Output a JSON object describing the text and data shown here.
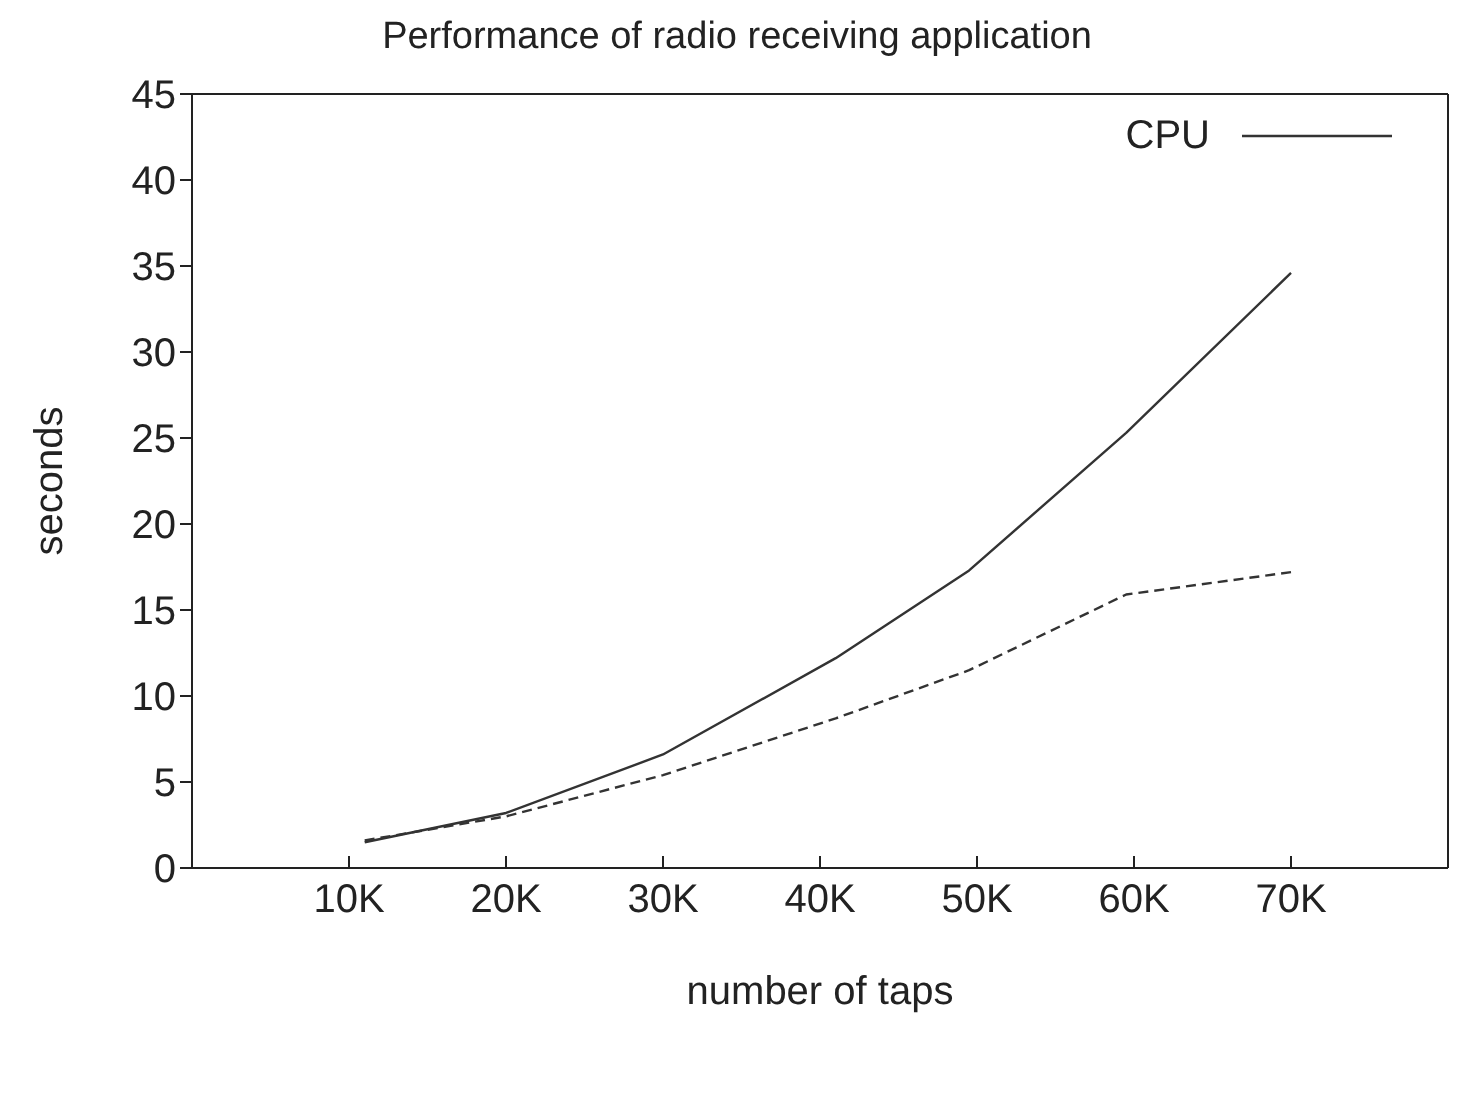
{
  "chart_data": {
    "type": "line",
    "title": "Performance of radio receiving application",
    "xlabel": "number of taps",
    "ylabel": "seconds",
    "x": [
      11000,
      20000,
      30000,
      41000,
      49500,
      59500,
      70000
    ],
    "series": [
      {
        "name": "CPU",
        "color": "#333333",
        "line_style": "solid",
        "values": [
          1.5,
          3.2,
          6.6,
          12.2,
          17.3,
          25.3,
          34.6
        ]
      },
      {
        "color": "#333333",
        "line_style": "dashed",
        "values": [
          1.6,
          3.0,
          5.4,
          8.7,
          11.5,
          15.9,
          17.2
        ]
      }
    ],
    "xlim": [
      0,
      80000
    ],
    "xticks": [
      {
        "value": 10000,
        "label": "10K"
      },
      {
        "value": 20000,
        "label": "20K"
      },
      {
        "value": 30000,
        "label": "30K"
      },
      {
        "value": 40000,
        "label": "40K"
      },
      {
        "value": 50000,
        "label": "50K"
      },
      {
        "value": 60000,
        "label": "60K"
      },
      {
        "value": 70000,
        "label": "70K"
      }
    ],
    "ylim": [
      0,
      45
    ],
    "yticks": [
      0,
      5,
      10,
      15,
      20,
      25,
      30,
      35,
      40,
      45
    ],
    "grid": false,
    "legend": "top right",
    "marker": "none"
  }
}
